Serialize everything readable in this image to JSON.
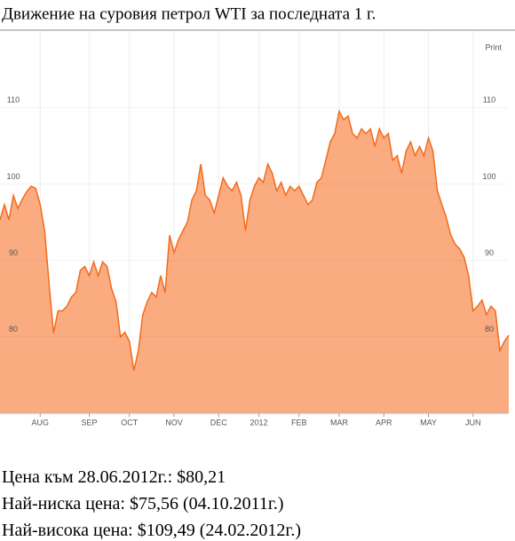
{
  "chart_data": {
    "type": "area",
    "title": "Движение на суровия петрол WTI за последната 1 г.",
    "print_label": "Print",
    "categories": [
      null,
      null,
      null,
      null,
      null,
      null,
      null,
      null,
      null,
      "AUG",
      null,
      null,
      null,
      null,
      null,
      null,
      null,
      null,
      null,
      null,
      "SEP",
      null,
      null,
      null,
      null,
      null,
      null,
      null,
      null,
      "OCT",
      null,
      null,
      null,
      null,
      null,
      null,
      null,
      null,
      null,
      "NOV",
      null,
      null,
      null,
      null,
      null,
      null,
      null,
      null,
      null,
      "DEC",
      null,
      null,
      null,
      null,
      null,
      null,
      null,
      null,
      "2012",
      null,
      null,
      null,
      null,
      null,
      null,
      null,
      null,
      "FEB",
      null,
      null,
      null,
      null,
      null,
      null,
      null,
      null,
      "MAR",
      null,
      null,
      null,
      null,
      null,
      null,
      null,
      null,
      null,
      "APR",
      null,
      null,
      null,
      null,
      null,
      null,
      null,
      null,
      null,
      "MAY",
      null,
      null,
      null,
      null,
      null,
      null,
      null,
      null,
      null,
      "JUN",
      null,
      null,
      null,
      null,
      null,
      null,
      null,
      null
    ],
    "values": [
      95.3,
      97.3,
      95.3,
      98.5,
      96.8,
      98,
      99,
      99.7,
      99.4,
      97.3,
      93.9,
      86.9,
      80.5,
      83.4,
      83.4,
      84,
      85.2,
      85.8,
      88.7,
      89.2,
      88,
      89.8,
      88,
      89.8,
      89.2,
      86.3,
      84.6,
      80,
      80.6,
      79.4,
      75.6,
      78.2,
      82.9,
      84.6,
      85.8,
      85.2,
      88,
      85.8,
      93.3,
      91,
      92.7,
      93.9,
      95,
      97.9,
      99.1,
      102.6,
      98.5,
      97.9,
      96.2,
      98.5,
      100.8,
      99.7,
      99.1,
      100.2,
      98.5,
      93.9,
      97.9,
      99.7,
      100.8,
      100.2,
      102.6,
      101.4,
      99.1,
      100.2,
      98.5,
      99.7,
      99.1,
      99.7,
      98.5,
      97.3,
      97.9,
      100.2,
      100.8,
      103.1,
      105.5,
      106.6,
      109.5,
      108.4,
      108.9,
      106.6,
      106,
      107.2,
      106.6,
      107.2,
      104.9,
      107.2,
      106,
      106.6,
      103.1,
      103.7,
      101.4,
      104.3,
      105.5,
      103.7,
      104.9,
      103.7,
      106,
      104.3,
      99.1,
      97.3,
      95.6,
      93.3,
      92.1,
      91.5,
      90.4,
      88,
      83.4,
      84,
      84.8,
      82.9,
      84,
      83.4,
      78.2,
      79.4,
      80.2
    ],
    "color": "#f26b1d",
    "fill": "#fbab80",
    "ylim": [
      70,
      120
    ],
    "yticks": [
      80,
      90,
      100,
      110
    ]
  },
  "notes": [
    "Цена към 28.06.2012г.: $80,21",
    "Най-ниска цена: $75,56 (04.10.2011г.)",
    "Най-висока цена: $109,49 (24.02.2012г.)"
  ]
}
